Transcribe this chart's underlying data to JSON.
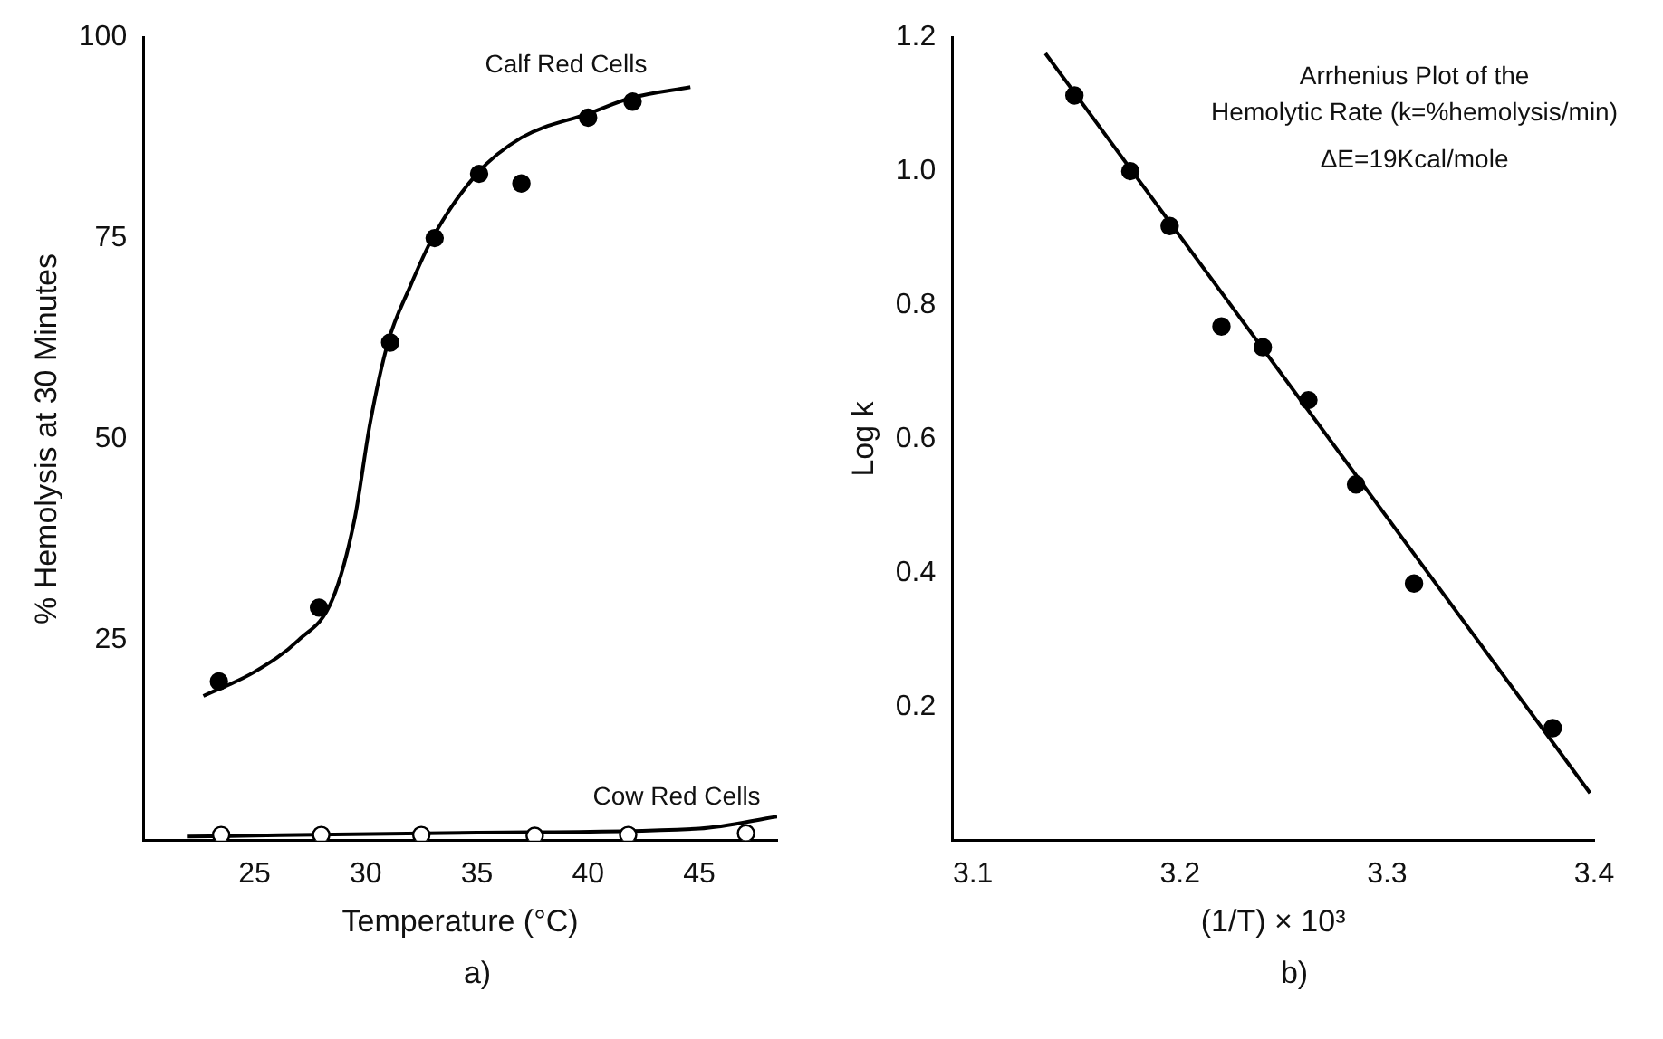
{
  "chart_data": [
    {
      "type": "scatter",
      "xlabel": "Temperature (°C)",
      "ylabel": "% Hemolysis at 30 Minutes",
      "xlim": [
        20,
        48.5
      ],
      "xticks": [
        25,
        30,
        35,
        40,
        45
      ],
      "ylim": [
        0,
        100
      ],
      "yticks": [
        25,
        50,
        75,
        100
      ],
      "grid": false,
      "legend": false,
      "marker": "circle",
      "annotations": [
        "a)"
      ],
      "series": [
        {
          "name": "Calf Red Cells",
          "color": "#000000",
          "x": [
            23.4,
            27.9,
            31.1,
            33.1,
            35.1,
            37,
            40,
            42
          ],
          "values": [
            19.8,
            29,
            62,
            75,
            83,
            81.8,
            90,
            92
          ]
        },
        {
          "type": "line",
          "marker": "none",
          "color": "#000000",
          "x": [
            22.7,
            25,
            27,
            28.5,
            29.5,
            30.2,
            31,
            32,
            33,
            35,
            37,
            40,
            42,
            44.6
          ],
          "values": [
            18,
            21,
            25,
            30,
            40,
            52,
            62,
            69,
            75,
            83,
            87.5,
            90.5,
            92.5,
            93.8
          ]
        },
        {
          "name": "Cow Red Cells",
          "color": "#ffffff",
          "x": [
            23.5,
            28,
            32.5,
            37.6,
            41.8,
            47.1
          ],
          "values": [
            0.7,
            0.7,
            0.7,
            0.6,
            0.7,
            0.9
          ]
        },
        {
          "type": "line",
          "marker": "none",
          "color": "#000000",
          "x": [
            22,
            35,
            45,
            48.5
          ],
          "values": [
            0.5,
            1,
            1.5,
            3
          ]
        }
      ]
    },
    {
      "type": "scatter",
      "xlabel": "(1/T) × 10³",
      "ylabel": "Log k",
      "xlim": [
        3.09,
        3.4
      ],
      "xticks": [
        3.1,
        3.2,
        3.3,
        3.4
      ],
      "ylim": [
        0,
        1.2
      ],
      "yticks": [
        0.2,
        0.4,
        0.6,
        0.8,
        {
          "value": 1,
          "label": "1.0"
        },
        1.2
      ],
      "grid": false,
      "legend": false,
      "marker": "circle",
      "annotations": [
        "Arrhenius Plot of the",
        "Hemolytic Rate (k=%hemolysis/min)",
        "ΔE=19Kcal/mole",
        "b)"
      ],
      "series": [
        {
          "color": "#000000",
          "x": [
            3.149,
            3.176,
            3.195,
            3.22,
            3.24,
            3.262,
            3.285,
            3.313,
            3.38
          ],
          "values": [
            1.113,
            1.0,
            0.918,
            0.768,
            0.737,
            0.658,
            0.532,
            0.384,
            0.168
          ]
        },
        {
          "type": "line",
          "marker": "none",
          "color": "#000000",
          "x": [
            3.135,
            3.398
          ],
          "values": [
            1.176,
            0.071
          ]
        }
      ]
    }
  ]
}
